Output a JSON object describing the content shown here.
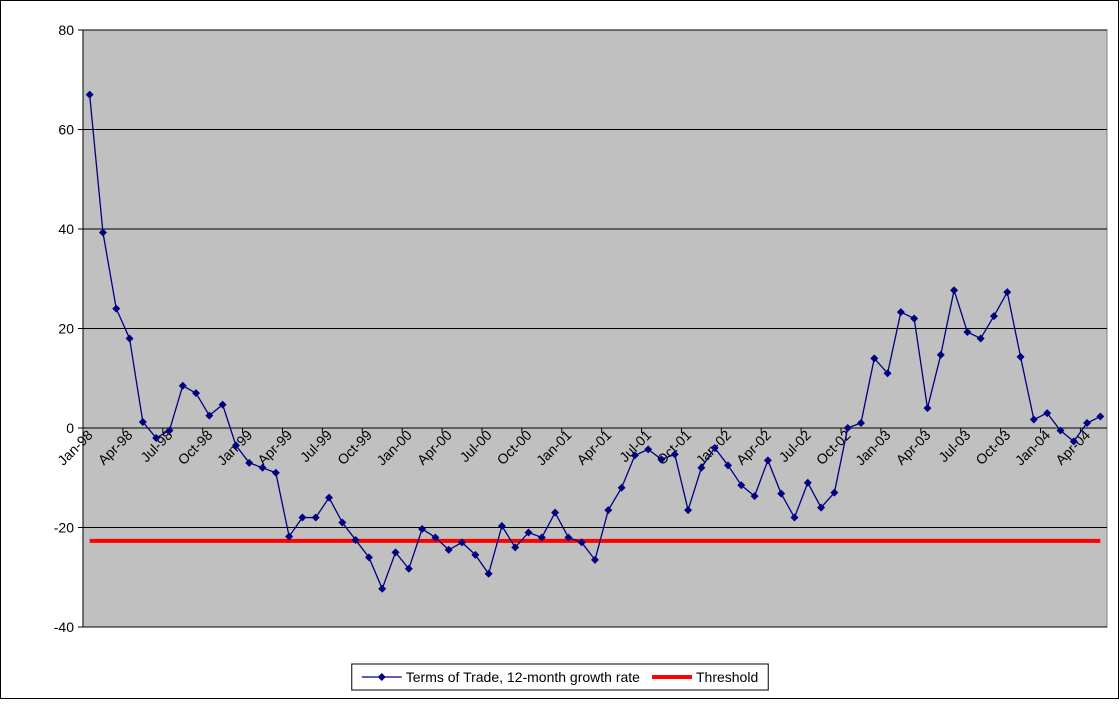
{
  "chart_data": {
    "type": "line",
    "categories": [
      "Jan-98",
      null,
      null,
      "Apr-98",
      null,
      null,
      "Jul-98",
      null,
      null,
      "Oct-98",
      null,
      null,
      "Jan-99",
      null,
      null,
      "Apr-99",
      null,
      null,
      "Jul-99",
      null,
      null,
      "Oct-99",
      null,
      null,
      "Jan-00",
      null,
      null,
      "Apr-00",
      null,
      null,
      "Jul-00",
      null,
      null,
      "Oct-00",
      null,
      null,
      "Jan-01",
      null,
      null,
      "Apr-01",
      null,
      null,
      "Jul-01",
      null,
      null,
      "Oct-01",
      null,
      null,
      "Jan-02",
      null,
      null,
      "Apr-02",
      null,
      null,
      "Jul-02",
      null,
      null,
      "Oct-02",
      null,
      null,
      "Jan-03",
      null,
      null,
      "Apr-03",
      null,
      null,
      "Jul-03",
      null,
      null,
      "Oct-03",
      null,
      null,
      "Jan-04",
      null,
      null,
      "Apr-04",
      null
    ],
    "series": [
      {
        "name": "Terms of Trade, 12-month growth rate",
        "color": "#000080",
        "values": [
          67,
          39.3,
          24,
          18,
          1.2,
          -2,
          -0.5,
          8.5,
          7,
          2.5,
          4.7,
          -3.5,
          -7,
          -8,
          -9,
          -21.8,
          -18,
          -18,
          -14,
          -19,
          -22.5,
          -26,
          -32.3,
          -25,
          -28.3,
          -20.3,
          -22,
          -24.5,
          -23,
          -25.5,
          -29.3,
          -19.7,
          -24,
          -21,
          -22,
          -17,
          -22,
          -23,
          -26.5,
          -16.5,
          -12,
          -5.5,
          -4.3,
          -6.3,
          -5.3,
          -16.5,
          -8,
          -4,
          -7.5,
          -11.5,
          -13.7,
          -6.5,
          -13.2,
          -18,
          -11,
          -16,
          -13,
          0,
          1,
          14,
          11,
          23.3,
          22,
          4,
          14.7,
          27.7,
          19.3,
          18,
          22.5,
          27.3,
          14.3,
          1.7,
          3,
          -0.5,
          -2.7,
          1,
          2.3
        ]
      }
    ],
    "threshold": {
      "name": "Threshold",
      "color": "#ff0000",
      "value": -22.7
    },
    "ylim": [
      -40,
      80
    ],
    "yticks": [
      -40,
      -20,
      0,
      20,
      40,
      60,
      80
    ],
    "grid": true,
    "plot_background": "#c0c0c0",
    "legend": "bottom"
  }
}
